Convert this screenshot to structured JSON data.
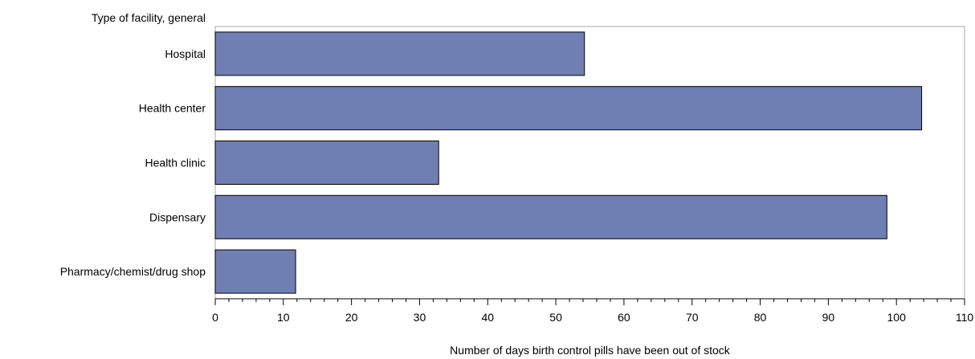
{
  "chart_data": {
    "type": "bar",
    "orientation": "horizontal",
    "categories": [
      "Hospital",
      "Health center",
      "Health clinic",
      "Dispensary",
      "Pharmacy/chemist/drug shop"
    ],
    "values": [
      54.2,
      103.7,
      32.8,
      98.6,
      11.8
    ],
    "ylabel": "Type of facility, general",
    "xlabel": "Number of days birth control pills have been out of stock",
    "xlim": [
      0,
      110
    ],
    "xticks": [
      0,
      10,
      20,
      30,
      40,
      50,
      60,
      70,
      80,
      90,
      100,
      110
    ],
    "grid": false,
    "colors": {
      "bar_fill": "#6f7fb3",
      "bar_stroke": "#000000",
      "frame": "#a8a8a8",
      "axis": "#000000"
    }
  }
}
